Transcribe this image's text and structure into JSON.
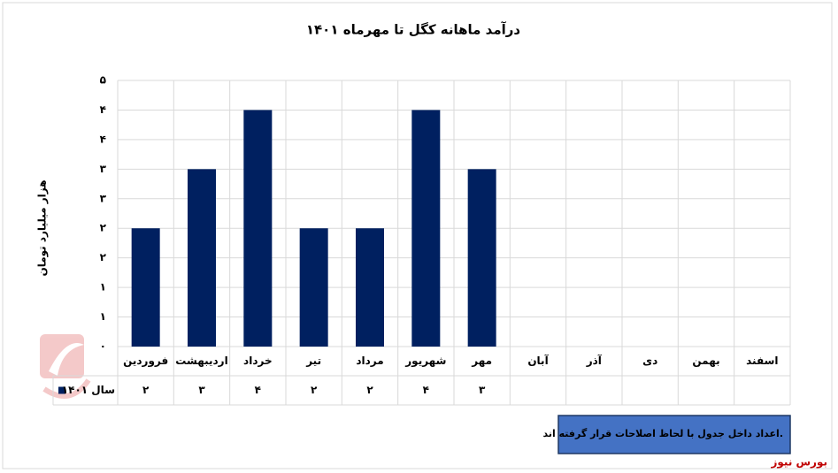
{
  "chart_data": {
    "type": "bar",
    "title": "درآمد ماهانه کگل تا مهرماه ۱۴۰۱",
    "y_label": "هزار میلیارد تومان",
    "categories": [
      "فروردین",
      "اردیبهشت",
      "خرداد",
      "تیر",
      "مرداد",
      "شهریور",
      "مهر",
      "آبان",
      "آذر",
      "دی",
      "بهمن",
      "اسفند"
    ],
    "series": [
      {
        "name": "سال ۱۴۰۱",
        "color": "#002060",
        "values": [
          2,
          3,
          4,
          2,
          2,
          4,
          3,
          null,
          null,
          null,
          null,
          null
        ],
        "value_labels": [
          "۲",
          "۳",
          "۴",
          "۲",
          "۲",
          "۴",
          "۳",
          null,
          null,
          null,
          null,
          null
        ]
      }
    ],
    "ylim": [
      0,
      4.5
    ],
    "yticks": [
      {
        "value": 0,
        "label": "۰"
      },
      {
        "value": 0.5,
        "label": "۱"
      },
      {
        "value": 1,
        "label": "۱"
      },
      {
        "value": 1.5,
        "label": "۲"
      },
      {
        "value": 2,
        "label": "۲"
      },
      {
        "value": 2.5,
        "label": "۳"
      },
      {
        "value": 3,
        "label": "۳"
      },
      {
        "value": 3.5,
        "label": "۴"
      },
      {
        "value": 4,
        "label": "۴"
      },
      {
        "value": 4.5,
        "label": "۵"
      }
    ],
    "grid": true,
    "note": "اعداد داخل جدول با لحاظ اصلاحات قرار گرفته اند.",
    "source": "بورس نیوز"
  }
}
